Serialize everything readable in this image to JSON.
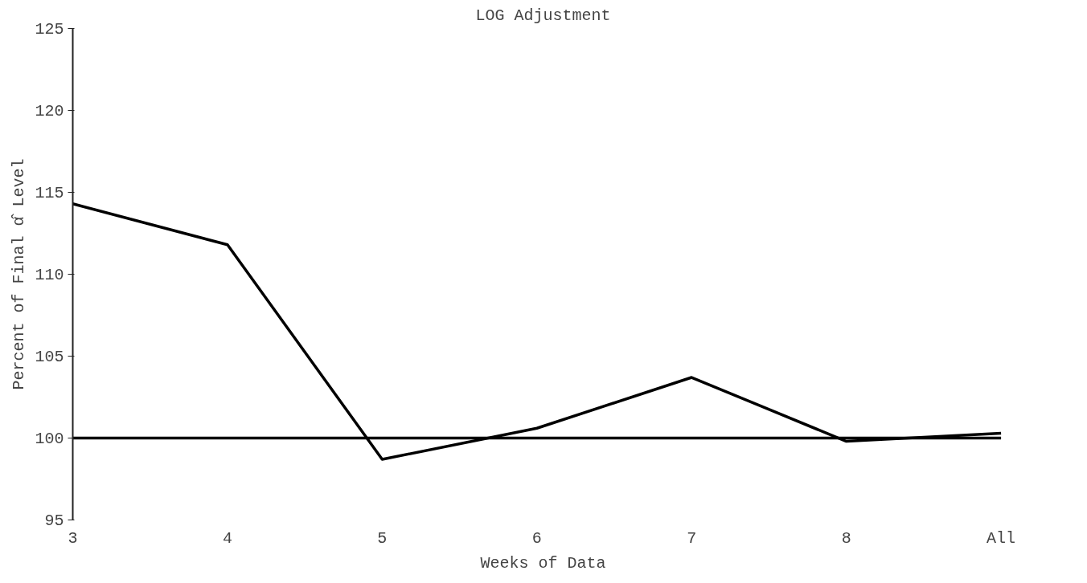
{
  "chart_data": {
    "type": "line",
    "title": "LOG Adjustment",
    "xlabel": "Weeks of Data",
    "ylabel": "Percent of Final α̂ Level",
    "categories": [
      "3",
      "4",
      "5",
      "6",
      "7",
      "8",
      "All"
    ],
    "series": [
      {
        "color": "#000000",
        "values": [
          114.3,
          111.8,
          98.7,
          100.6,
          103.7,
          99.8,
          100.3
        ]
      },
      {
        "color": "#000000",
        "values": [
          100,
          100,
          100,
          100,
          100,
          100,
          100
        ]
      }
    ],
    "ylim": [
      95,
      125
    ],
    "yticks": [
      95,
      100,
      105,
      110,
      115,
      120,
      125
    ],
    "grid": false,
    "marker": "none",
    "line_style": "solid"
  }
}
